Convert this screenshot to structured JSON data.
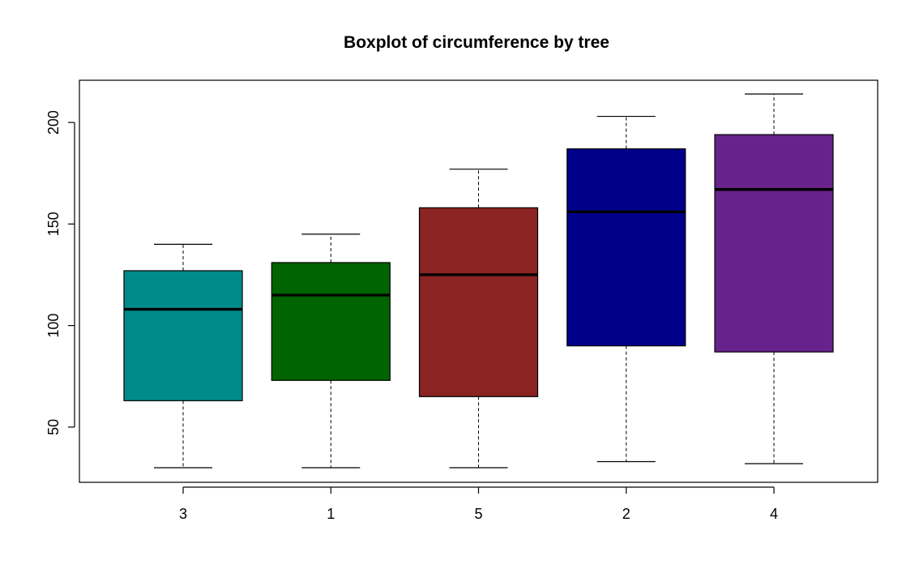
{
  "chart_data": {
    "type": "box",
    "title": "Boxplot of circumference by tree",
    "xlabel": "",
    "ylabel": "",
    "ylim": [
      25,
      220
    ],
    "y_ticks": [
      50,
      100,
      150,
      200
    ],
    "categories": [
      "3",
      "1",
      "5",
      "2",
      "4"
    ],
    "boxes": [
      {
        "category": "3",
        "min": 30,
        "q1": 63,
        "median": 108,
        "q3": 127,
        "max": 140,
        "color": "#008B8B"
      },
      {
        "category": "1",
        "min": 30,
        "q1": 73,
        "median": 115,
        "q3": 131,
        "max": 145,
        "color": "#006400"
      },
      {
        "category": "5",
        "min": 30,
        "q1": 65,
        "median": 125,
        "q3": 158,
        "max": 177,
        "color": "#8B2323"
      },
      {
        "category": "2",
        "min": 33,
        "q1": 90,
        "median": 156,
        "q3": 187,
        "max": 203,
        "color": "#00008B"
      },
      {
        "category": "4",
        "min": 32,
        "q1": 87,
        "median": 167,
        "q3": 194,
        "max": 214,
        "color": "#68228B"
      }
    ],
    "grid": false,
    "legend": "none"
  }
}
